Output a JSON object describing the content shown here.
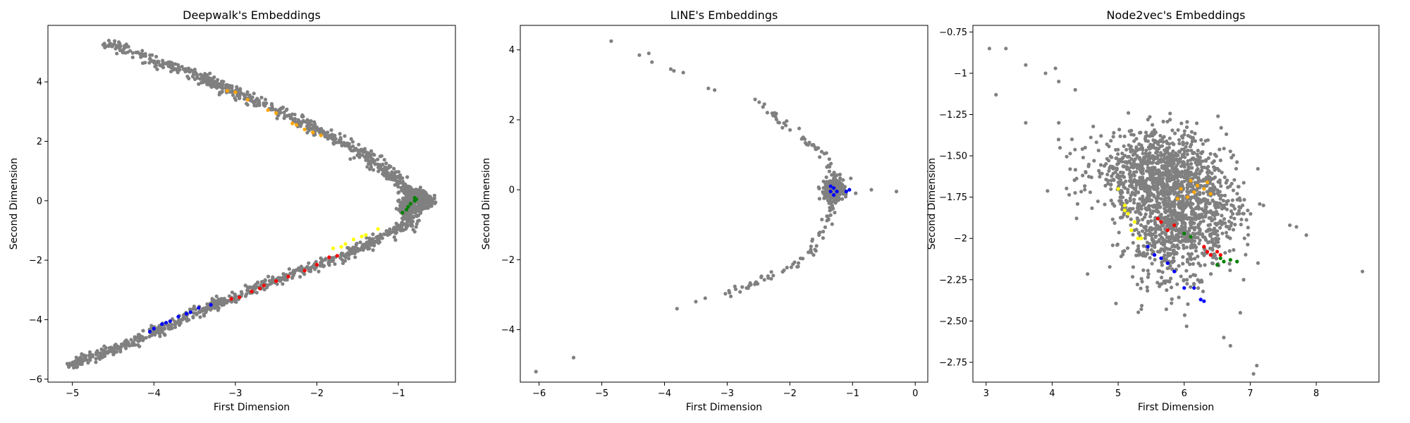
{
  "chart_data": [
    {
      "type": "scatter",
      "title": "Deepwalk's Embeddings",
      "xlabel": "First Dimension",
      "ylabel": "Second Dimension",
      "xlim": [
        -5.3,
        -0.3
      ],
      "ylim": [
        -6.1,
        5.9
      ],
      "xticks": [
        -5,
        -4,
        -3,
        -2,
        -1
      ],
      "yticks": [
        -6,
        -4,
        -2,
        0,
        2,
        4
      ],
      "background_color": "#808080",
      "background": {
        "count": 1500,
        "curves": [
          {
            "points": [
              [
                -4.55,
                5.3
              ],
              [
                -3.5,
                4.25
              ],
              [
                -2.6,
                3.2
              ],
              [
                -1.5,
                1.7
              ],
              [
                -0.85,
                0.35
              ],
              [
                -0.65,
                0.0
              ]
            ],
            "spread": 0.13
          },
          {
            "points": [
              [
                -0.65,
                0.0
              ],
              [
                -0.95,
                -0.9
              ],
              [
                -1.7,
                -1.9
              ],
              [
                -2.6,
                -2.75
              ],
              [
                -3.6,
                -3.9
              ],
              [
                -4.3,
                -4.8
              ],
              [
                -5.05,
                -5.55
              ]
            ],
            "spread": 0.13
          }
        ],
        "extra_cluster": {
          "center": [
            -0.85,
            -0.1
          ],
          "spread": [
            0.15,
            0.4
          ],
          "count": 150
        }
      },
      "groups": [
        {
          "color": "#ffa500",
          "points": [
            [
              -3.1,
              3.7
            ],
            [
              -3.0,
              3.65
            ],
            [
              -2.85,
              3.4
            ],
            [
              -2.6,
              3.05
            ],
            [
              -2.5,
              2.95
            ],
            [
              -2.3,
              2.6
            ],
            [
              -2.25,
              2.55
            ],
            [
              -2.15,
              2.4
            ],
            [
              -2.05,
              2.3
            ],
            [
              -1.95,
              2.2
            ]
          ]
        },
        {
          "color": "#ffff00",
          "points": [
            [
              -1.25,
              -0.95
            ],
            [
              -1.4,
              -1.15
            ],
            [
              -1.55,
              -1.3
            ],
            [
              -1.65,
              -1.45
            ],
            [
              -1.8,
              -1.6
            ],
            [
              -1.7,
              -1.55
            ],
            [
              -1.45,
              -1.2
            ]
          ]
        },
        {
          "color": "#ff0000",
          "points": [
            [
              -1.85,
              -1.9
            ],
            [
              -2.0,
              -2.15
            ],
            [
              -2.15,
              -2.35
            ],
            [
              -2.35,
              -2.55
            ],
            [
              -2.5,
              -2.7
            ],
            [
              -2.65,
              -2.85
            ],
            [
              -2.8,
              -3.05
            ],
            [
              -2.95,
              -3.25
            ],
            [
              -3.05,
              -3.3
            ],
            [
              -2.7,
              -2.95
            ],
            [
              -1.75,
              -1.85
            ]
          ]
        },
        {
          "color": "#0000ff",
          "points": [
            [
              -3.3,
              -3.5
            ],
            [
              -3.45,
              -3.6
            ],
            [
              -3.55,
              -3.75
            ],
            [
              -3.7,
              -3.9
            ],
            [
              -3.8,
              -4.05
            ],
            [
              -3.9,
              -4.15
            ],
            [
              -4.0,
              -4.3
            ],
            [
              -4.05,
              -4.4
            ],
            [
              -3.85,
              -4.1
            ],
            [
              -3.6,
              -3.8
            ]
          ]
        },
        {
          "color": "#008000",
          "points": [
            [
              -0.8,
              0.1
            ],
            [
              -0.8,
              0.0
            ],
            [
              -0.85,
              -0.1
            ],
            [
              -0.88,
              -0.2
            ],
            [
              -0.9,
              -0.3
            ],
            [
              -0.95,
              -0.4
            ],
            [
              -0.78,
              0.05
            ]
          ]
        }
      ]
    },
    {
      "type": "scatter",
      "title": "LINE's Embeddings",
      "xlabel": "First Dimension",
      "ylabel": "Second Dimension",
      "xlim": [
        -6.3,
        0.2
      ],
      "ylim": [
        -5.5,
        4.7
      ],
      "xticks": [
        -6,
        -5,
        -4,
        -3,
        -2,
        -1,
        0
      ],
      "yticks": [
        -4,
        -2,
        0,
        2,
        4
      ],
      "background_color": "#808080",
      "background": {
        "count": 420,
        "curves": [
          {
            "points": [
              [
                -2.6,
                2.6
              ],
              [
                -2.2,
                2.0
              ],
              [
                -1.8,
                1.5
              ],
              [
                -1.45,
                1.0
              ],
              [
                -1.3,
                0.3
              ]
            ],
            "spread": 0.09,
            "count": 50
          },
          {
            "points": [
              [
                -1.3,
                -0.3
              ],
              [
                -1.45,
                -1.0
              ],
              [
                -1.7,
                -1.8
              ],
              [
                -2.1,
                -2.3
              ],
              [
                -2.6,
                -2.7
              ],
              [
                -3.0,
                -3.0
              ]
            ],
            "spread": 0.09,
            "count": 70
          }
        ],
        "extra_cluster": {
          "center": [
            -1.3,
            0.0
          ],
          "spread": [
            0.15,
            0.3
          ],
          "count": 300
        }
      },
      "outliers": [
        [
          -4.85,
          4.25
        ],
        [
          -4.4,
          3.85
        ],
        [
          -4.25,
          3.9
        ],
        [
          -4.2,
          3.65
        ],
        [
          -3.9,
          3.45
        ],
        [
          -3.85,
          3.4
        ],
        [
          -3.7,
          3.35
        ],
        [
          -3.3,
          2.9
        ],
        [
          -3.2,
          2.85
        ],
        [
          -6.05,
          -5.2
        ],
        [
          -5.45,
          -4.8
        ],
        [
          -3.8,
          -3.4
        ],
        [
          -3.5,
          -3.2
        ],
        [
          -3.35,
          -3.1
        ],
        [
          -0.95,
          -0.1
        ],
        [
          -0.7,
          0.0
        ],
        [
          -0.3,
          -0.05
        ]
      ],
      "groups": [
        {
          "color": "#0000ff",
          "points": [
            [
              -1.3,
              0.05
            ],
            [
              -1.35,
              -0.05
            ],
            [
              -1.3,
              -0.15
            ],
            [
              -1.35,
              0.1
            ],
            [
              -1.25,
              -0.05
            ],
            [
              -1.1,
              -0.05
            ],
            [
              -1.05,
              0.0
            ]
          ]
        }
      ]
    },
    {
      "type": "scatter",
      "title": "Node2vec's Embeddings",
      "xlabel": "First Dimension",
      "ylabel": "Second Dimension",
      "xlim": [
        2.8,
        8.95
      ],
      "ylim": [
        -2.87,
        -0.71
      ],
      "xticks": [
        3,
        4,
        5,
        6,
        7,
        8
      ],
      "yticks": [
        -2.75,
        -2.5,
        -2.25,
        -2.0,
        -1.75,
        -1.5,
        -1.25,
        -1.0,
        -0.75
      ],
      "background_color": "#808080",
      "background": {
        "count": 1800,
        "blobs": [
          {
            "center": [
              5.6,
              -1.6
            ],
            "spread": [
              0.5,
              0.12
            ],
            "count": 900
          },
          {
            "center": [
              5.8,
              -1.95
            ],
            "spread": [
              0.35,
              0.18
            ],
            "count": 600
          },
          {
            "center": [
              6.3,
              -1.85
            ],
            "spread": [
              0.35,
              0.12
            ],
            "count": 300
          }
        ]
      },
      "outliers": [
        [
          3.05,
          -0.85
        ],
        [
          3.3,
          -0.85
        ],
        [
          3.15,
          -1.13
        ],
        [
          3.6,
          -0.95
        ],
        [
          3.9,
          -1.0
        ],
        [
          4.05,
          -0.97
        ],
        [
          4.1,
          -1.05
        ],
        [
          4.35,
          -1.1
        ],
        [
          3.6,
          -1.3
        ],
        [
          4.1,
          -1.3
        ],
        [
          4.5,
          -1.45
        ],
        [
          4.3,
          -1.4
        ],
        [
          7.6,
          -1.92
        ],
        [
          7.7,
          -1.93
        ],
        [
          7.85,
          -1.98
        ],
        [
          8.7,
          -2.2
        ],
        [
          6.6,
          -2.6
        ],
        [
          6.7,
          -2.65
        ],
        [
          6.85,
          -2.45
        ],
        [
          7.05,
          -2.82
        ],
        [
          7.1,
          -2.77
        ],
        [
          7.2,
          -1.8
        ],
        [
          6.9,
          -2.25
        ]
      ],
      "groups": [
        {
          "color": "#ffa500",
          "points": [
            [
              6.1,
              -1.65
            ],
            [
              6.2,
              -1.68
            ],
            [
              6.3,
              -1.7
            ],
            [
              6.4,
              -1.73
            ],
            [
              6.15,
              -1.72
            ],
            [
              6.05,
              -1.75
            ],
            [
              5.95,
              -1.7
            ],
            [
              6.35,
              -1.66
            ],
            [
              5.9,
              -1.76
            ]
          ]
        },
        {
          "color": "#ffff00",
          "points": [
            [
              5.0,
              -1.7
            ],
            [
              5.1,
              -1.8
            ],
            [
              5.15,
              -1.85
            ],
            [
              5.2,
              -1.95
            ],
            [
              5.3,
              -2.0
            ],
            [
              5.25,
              -1.9
            ],
            [
              5.35,
              -2.0
            ],
            [
              5.1,
              -1.83
            ]
          ]
        },
        {
          "color": "#ff0000",
          "points": [
            [
              5.6,
              -1.88
            ],
            [
              5.65,
              -1.9
            ],
            [
              5.75,
              -1.95
            ],
            [
              5.85,
              -1.92
            ],
            [
              6.3,
              -2.05
            ],
            [
              6.35,
              -2.08
            ],
            [
              6.4,
              -2.1
            ],
            [
              6.5,
              -2.08
            ],
            [
              6.55,
              -2.1
            ]
          ]
        },
        {
          "color": "#0000ff",
          "points": [
            [
              5.45,
              -2.05
            ],
            [
              5.55,
              -2.1
            ],
            [
              5.65,
              -2.12
            ],
            [
              5.75,
              -2.15
            ],
            [
              5.85,
              -2.2
            ],
            [
              6.0,
              -2.3
            ],
            [
              6.15,
              -2.3
            ],
            [
              6.25,
              -2.37
            ],
            [
              6.3,
              -2.38
            ]
          ]
        },
        {
          "color": "#008000",
          "points": [
            [
              6.0,
              -1.97
            ],
            [
              6.1,
              -1.99
            ],
            [
              6.55,
              -2.12
            ],
            [
              6.6,
              -2.14
            ],
            [
              6.7,
              -2.13
            ],
            [
              6.8,
              -2.14
            ],
            [
              6.5,
              -2.16
            ]
          ]
        }
      ]
    }
  ]
}
